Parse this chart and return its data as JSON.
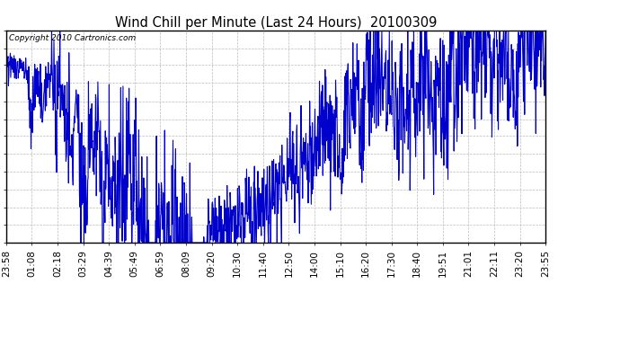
{
  "title": "Wind Chill per Minute (Last 24 Hours)  20100309",
  "copyright_text": "Copyright 2010 Cartronics.com",
  "line_color": "#0000CC",
  "bg_color": "#ffffff",
  "plot_bg_color": "#ffffff",
  "grid_color": "#bbbbbb",
  "yticks": [
    25.7,
    27.1,
    28.4,
    29.8,
    31.2,
    32.6,
    34.0,
    35.3,
    36.7,
    38.1,
    39.5,
    40.8,
    42.2
  ],
  "ylim": [
    25.7,
    42.2
  ],
  "xtick_labels": [
    "23:58",
    "01:08",
    "02:18",
    "03:29",
    "04:39",
    "05:49",
    "06:59",
    "08:09",
    "09:20",
    "10:30",
    "11:40",
    "12:50",
    "14:00",
    "15:10",
    "16:20",
    "17:30",
    "18:40",
    "19:51",
    "21:01",
    "22:11",
    "23:20",
    "23:55"
  ],
  "total_minutes": 1437,
  "line_width": 0.8,
  "title_fontsize": 10.5,
  "tick_fontsize": 7.5,
  "copyright_fontsize": 6.5
}
